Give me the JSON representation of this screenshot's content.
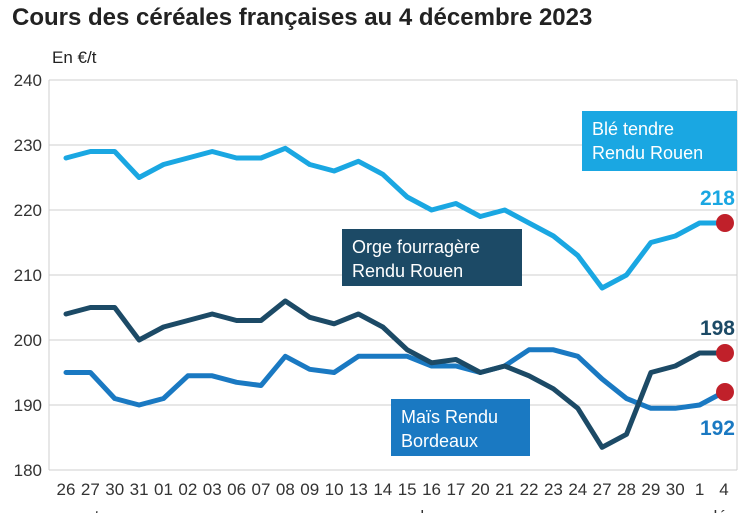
{
  "chart_data": {
    "type": "line",
    "title": "Cours des céréales françaises au 4 décembre 2023",
    "ylabel": "En €/t",
    "ylim": [
      180,
      240
    ],
    "yticks": [
      180,
      190,
      200,
      210,
      220,
      230,
      240
    ],
    "grid": true,
    "x": [
      "26",
      "27",
      "30",
      "31",
      "01",
      "02",
      "03",
      "06",
      "07",
      "08",
      "09",
      "10",
      "13",
      "14",
      "15",
      "16",
      "17",
      "20",
      "21",
      "22",
      "23",
      "24",
      "27",
      "28",
      "29",
      "30",
      "1",
      "4"
    ],
    "month_labels": [
      {
        "label": "oct.",
        "index": 1
      },
      {
        "label": "novembre",
        "index": 14
      },
      {
        "label": "déc.",
        "index": 27
      }
    ],
    "series": [
      {
        "name": "Blé tendre Rendu Rouen",
        "color": "#1aa7e2",
        "values": [
          228,
          229,
          229,
          225,
          227,
          228,
          229,
          228,
          228,
          229.5,
          227,
          226,
          227.5,
          225.5,
          222,
          220,
          221,
          219,
          220,
          218,
          216,
          213,
          208,
          210,
          215,
          216,
          218,
          218
        ],
        "end_label": "218",
        "label_lines": [
          "Blé tendre",
          "Rendu Rouen"
        ]
      },
      {
        "name": "Orge fourragère Rendu Rouen",
        "color": "#1c4a66",
        "values": [
          204,
          205,
          205,
          200,
          202,
          203,
          204,
          203,
          203,
          206,
          203.5,
          202.5,
          204,
          202,
          198.5,
          196.5,
          197,
          195,
          196,
          194.5,
          192.5,
          189.5,
          183.5,
          185.5,
          195,
          196,
          198,
          198
        ],
        "end_label": "198",
        "label_lines": [
          "Orge fourragère",
          "Rendu Rouen"
        ]
      },
      {
        "name": "Maïs Rendu Bordeaux",
        "color": "#1a79c2",
        "values": [
          195,
          195,
          191,
          190,
          191,
          194.5,
          194.5,
          193.5,
          193,
          197.5,
          195.5,
          195,
          197.5,
          197.5,
          197.5,
          196,
          196,
          195,
          196,
          198.5,
          198.5,
          197.5,
          194,
          191,
          189.5,
          189.5,
          190,
          192
        ],
        "end_label": "192",
        "label_lines": [
          "Maïs Rendu",
          "Bordeaux"
        ]
      }
    ],
    "endpoint_marker_color": "#c0202a"
  }
}
